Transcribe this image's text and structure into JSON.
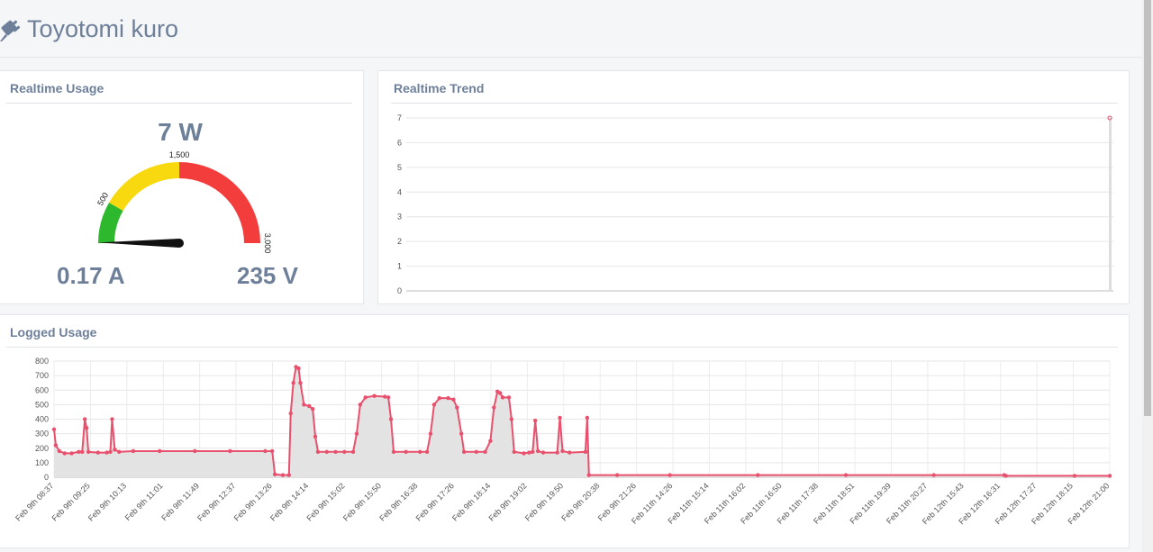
{
  "app": {
    "title": "Toyotomi kuro"
  },
  "realtime_usage": {
    "title": "Realtime Usage",
    "power": "7 W",
    "current": "0.17 A",
    "voltage": "235 V",
    "gauge": {
      "value": 7,
      "min": 0,
      "max": 3000,
      "bands": [
        {
          "from": 0,
          "to": 500,
          "color": "#2eb82e"
        },
        {
          "from": 500,
          "to": 1500,
          "color": "#f8d90f"
        },
        {
          "from": 1500,
          "to": 3000,
          "color": "#f33d3d"
        }
      ],
      "tick_labels": [
        "500",
        "1,500",
        "3,000"
      ]
    }
  },
  "realtime_trend": {
    "title": "Realtime Trend",
    "chart_data": {
      "type": "line",
      "y_ticks": [
        "0",
        "1",
        "2",
        "3",
        "4",
        "5",
        "6",
        "7"
      ],
      "ylim": [
        0,
        7
      ],
      "series": [
        {
          "values": [
            7
          ]
        }
      ]
    }
  },
  "logged_usage": {
    "title": "Logged Usage",
    "chart_data": {
      "type": "area",
      "ylim": [
        0,
        800
      ],
      "y_ticks": [
        "0",
        "100",
        "200",
        "300",
        "400",
        "500",
        "600",
        "700",
        "800"
      ],
      "x_ticks": [
        "Feb 9th 08:37",
        "Feb 9th 09:25",
        "Feb 9th 10:13",
        "Feb 9th 11:01",
        "Feb 9th 11:49",
        "Feb 9th 12:37",
        "Feb 9th 13:26",
        "Feb 9th 14:14",
        "Feb 9th 15:02",
        "Feb 9th 15:50",
        "Feb 9th 16:38",
        "Feb 9th 17:26",
        "Feb 9th 18:14",
        "Feb 9th 19:02",
        "Feb 9th 19:50",
        "Feb 9th 20:38",
        "Feb 9th 21:26",
        "Feb 11th 14:26",
        "Feb 11th 15:14",
        "Feb 11th 16:02",
        "Feb 11th 16:50",
        "Feb 11th 17:38",
        "Feb 11th 18:51",
        "Feb 11th 19:39",
        "Feb 11th 20:27",
        "Feb 12th 15:43",
        "Feb 12th 16:31",
        "Feb 12th 17:27",
        "Feb 12th 18:15",
        "Feb 12th 21:00"
      ],
      "series": [
        {
          "color": "#e8506d",
          "values": [
            [
              0,
              330
            ],
            [
              0.1,
              220
            ],
            [
              0.3,
              180
            ],
            [
              0.6,
              165
            ],
            [
              1.0,
              165
            ],
            [
              1.4,
              175
            ],
            [
              1.6,
              175
            ],
            [
              1.75,
              400
            ],
            [
              1.85,
              340
            ],
            [
              1.95,
              175
            ],
            [
              2.5,
              170
            ],
            [
              3.0,
              170
            ],
            [
              3.2,
              175
            ],
            [
              3.3,
              400
            ],
            [
              3.45,
              190
            ],
            [
              3.7,
              175
            ],
            [
              4.5,
              180
            ],
            [
              6.0,
              180
            ],
            [
              8.0,
              180
            ],
            [
              10.0,
              180
            ],
            [
              12.0,
              180
            ],
            [
              12.4,
              180
            ],
            [
              12.55,
              20
            ],
            [
              13.0,
              15
            ],
            [
              13.35,
              15
            ],
            [
              13.45,
              440
            ],
            [
              13.6,
              650
            ],
            [
              13.75,
              760
            ],
            [
              13.9,
              750
            ],
            [
              14.0,
              650
            ],
            [
              14.2,
              500
            ],
            [
              14.5,
              490
            ],
            [
              14.7,
              470
            ],
            [
              14.85,
              280
            ],
            [
              15.0,
              175
            ],
            [
              15.5,
              175
            ],
            [
              16.0,
              175
            ],
            [
              16.5,
              175
            ],
            [
              17.0,
              175
            ],
            [
              17.2,
              300
            ],
            [
              17.4,
              500
            ],
            [
              17.7,
              550
            ],
            [
              18.2,
              560
            ],
            [
              18.8,
              555
            ],
            [
              19.0,
              550
            ],
            [
              19.15,
              400
            ],
            [
              19.3,
              175
            ],
            [
              20.0,
              175
            ],
            [
              20.8,
              175
            ],
            [
              21.2,
              175
            ],
            [
              21.4,
              300
            ],
            [
              21.6,
              500
            ],
            [
              21.9,
              545
            ],
            [
              22.4,
              545
            ],
            [
              22.7,
              535
            ],
            [
              22.9,
              480
            ],
            [
              23.15,
              300
            ],
            [
              23.3,
              175
            ],
            [
              24.0,
              175
            ],
            [
              24.5,
              175
            ],
            [
              24.8,
              250
            ],
            [
              25.0,
              480
            ],
            [
              25.2,
              590
            ],
            [
              25.35,
              580
            ],
            [
              25.5,
              550
            ],
            [
              25.85,
              550
            ],
            [
              26.0,
              400
            ],
            [
              26.15,
              175
            ],
            [
              26.7,
              165
            ],
            [
              27.0,
              170
            ],
            [
              27.2,
              175
            ],
            [
              27.35,
              390
            ],
            [
              27.5,
              180
            ],
            [
              27.8,
              170
            ],
            [
              28.6,
              170
            ],
            [
              28.75,
              410
            ],
            [
              28.9,
              180
            ],
            [
              29.3,
              170
            ],
            [
              30.2,
              175
            ],
            [
              30.3,
              410
            ],
            [
              30.4,
              15
            ],
            [
              32.0,
              15
            ],
            [
              35.0,
              15
            ],
            [
              40.0,
              15
            ],
            [
              45.0,
              15
            ],
            [
              50.0,
              15
            ],
            [
              54.0,
              15
            ],
            [
              54.1,
              10
            ],
            [
              58.0,
              10
            ],
            [
              60.0,
              10
            ]
          ]
        }
      ]
    }
  }
}
